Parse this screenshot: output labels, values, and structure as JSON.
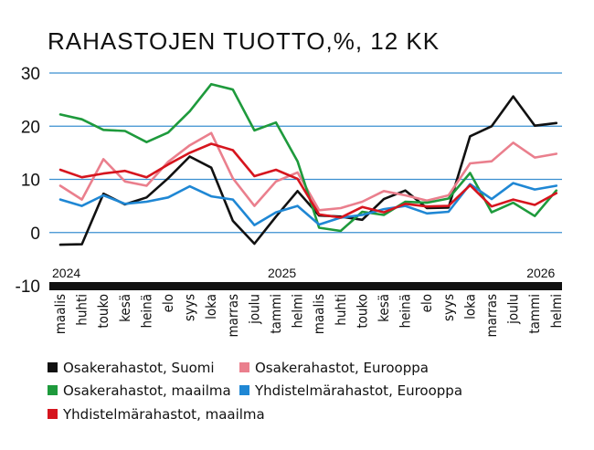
{
  "chart_data": {
    "type": "line",
    "title": "RAHASTOJEN TUOTTO,%, 12 KK",
    "ylim": [
      -10,
      30
    ],
    "yticks": [
      "30",
      "20",
      "10",
      "0",
      "-10"
    ],
    "ytick_values": [
      30,
      20,
      10,
      0,
      -10
    ],
    "grid": "horizontal",
    "legend_position": "bottom",
    "categories": [
      "maalis",
      "huhti",
      "touko",
      "kesä",
      "heinä",
      "elo",
      "syys",
      "loka",
      "marras",
      "joulu",
      "tammi",
      "helmi",
      "maalis",
      "huhti",
      "touko",
      "kesä",
      "heinä",
      "elo",
      "syys",
      "loka",
      "marras",
      "joulu",
      "tammi",
      "helmi"
    ],
    "year_labels": [
      {
        "label": "2024",
        "category_index": 0
      },
      {
        "label": "2025",
        "category_index": 10
      },
      {
        "label": "2026",
        "category_index": 22
      }
    ],
    "series": [
      {
        "name": "Osakerahastot, Suomi",
        "color": "#111111",
        "values": [
          -2.3,
          -2.2,
          7.3,
          5.3,
          6.6,
          10.2,
          14.3,
          12.2,
          2.2,
          -2.1,
          3.0,
          7.8,
          3.2,
          3.0,
          2.4,
          6.3,
          7.9,
          4.6,
          4.7,
          18.1,
          20.0,
          25.6,
          20.1,
          20.6
        ]
      },
      {
        "name": "Osakerahastot, Eurooppa",
        "color": "#ea7f8d",
        "values": [
          8.8,
          6.2,
          13.8,
          9.6,
          8.8,
          13.3,
          16.4,
          18.7,
          10.2,
          5.0,
          9.6,
          11.3,
          4.2,
          4.6,
          5.8,
          7.8,
          7.0,
          6.0,
          7.0,
          13.0,
          13.4,
          16.9,
          14.1,
          14.8
        ]
      },
      {
        "name": "Osakerahastot, maailma",
        "color": "#1e9a3c",
        "values": [
          22.2,
          21.3,
          19.3,
          19.1,
          17.0,
          18.8,
          22.8,
          27.9,
          26.9,
          19.2,
          20.7,
          13.4,
          0.9,
          0.3,
          3.9,
          3.3,
          5.8,
          5.6,
          6.4,
          11.2,
          3.8,
          5.6,
          3.1,
          7.9
        ]
      },
      {
        "name": "Yhdistelmärahastot, Eurooppa",
        "color": "#1f87d4",
        "values": [
          6.2,
          5.0,
          7.0,
          5.4,
          5.8,
          6.6,
          8.7,
          6.8,
          6.2,
          1.4,
          3.8,
          5.0,
          1.5,
          2.8,
          3.3,
          4.4,
          5.0,
          3.6,
          3.9,
          9.1,
          6.3,
          9.3,
          8.1,
          8.8
        ]
      },
      {
        "name": "Yhdistelmärahastot, maailma",
        "color": "#d6151e",
        "values": [
          11.8,
          10.4,
          11.1,
          11.6,
          10.4,
          12.8,
          15.0,
          16.7,
          15.5,
          10.6,
          11.8,
          10.1,
          3.4,
          2.8,
          4.8,
          3.8,
          5.4,
          4.9,
          5.0,
          8.9,
          4.9,
          6.2,
          5.2,
          7.4
        ]
      }
    ]
  }
}
